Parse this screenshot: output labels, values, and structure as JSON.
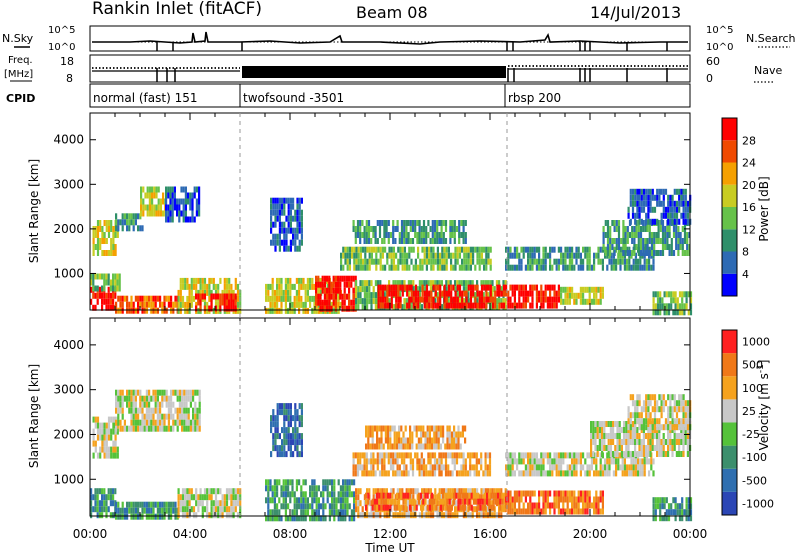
{
  "header": {
    "station": "Rankin Inlet (fitACF)",
    "beam": "Beam 08",
    "date": "14/Jul/2013"
  },
  "left_labels": {
    "nsky": "N.Sky",
    "freq_line1": "Freq.",
    "freq_line2": "[MHz]",
    "cpid": "CPID"
  },
  "right_labels": {
    "nsearch": "N.Search",
    "nave": "Nave"
  },
  "nsky_axis": {
    "top": "10^5",
    "bottom": "10^0"
  },
  "freq_axis": {
    "top": "18",
    "bottom": "8"
  },
  "nave_axis": {
    "top": "60",
    "bottom": "0"
  },
  "cpid_modes": [
    {
      "label": "normal (fast) 151",
      "start_h": 0.0,
      "end_h": 6.0
    },
    {
      "label": "twofsound -3501",
      "start_h": 6.0,
      "end_h": 16.6
    },
    {
      "label": "rbsp 200",
      "start_h": 16.6,
      "end_h": 24.0
    }
  ],
  "x_axis": {
    "label": "Time UT",
    "ticks": [
      "00:00",
      "04:00",
      "08:00",
      "12:00",
      "16:00",
      "20:00",
      "00:00"
    ]
  },
  "panels": {
    "power": {
      "ylabel": "Slant Range [km]",
      "yticks": [
        "1000",
        "2000",
        "3000",
        "4000"
      ],
      "cbar_label": "Power [dB]",
      "cbar_ticks": [
        "28",
        "24",
        "20",
        "16",
        "12",
        "8",
        "4"
      ],
      "colors": [
        "#0000ff",
        "#2d6ab4",
        "#2f8f6a",
        "#66c24a",
        "#c8cc22",
        "#f5a000",
        "#f04a00",
        "#ff0000"
      ]
    },
    "velocity": {
      "ylabel": "Slant Range [km]",
      "yticks": [
        "1000",
        "2000",
        "3000",
        "4000"
      ],
      "cbar_label": "Velocity [m s",
      "cbar_label_sup": "-1",
      "cbar_label_end": "]",
      "cbar_ticks": [
        "1000",
        "500",
        "100",
        "25",
        "-25",
        "-100",
        "-500",
        "-1000"
      ],
      "colors": [
        "#2b46b5",
        "#2f6fb0",
        "#3c8f6d",
        "#55c23a",
        "#c8c8c8",
        "#f5a21e",
        "#f07818",
        "#ff2020"
      ]
    }
  },
  "chart_data": [
    {
      "type": "heatmap",
      "title": "Power",
      "xlabel": "Time UT",
      "ylabel": "Slant Range [km]",
      "xlim_hours": [
        0,
        24
      ],
      "ylim_km": [
        180,
        4600
      ],
      "colorbar_ticks_dB": [
        4,
        8,
        12,
        16,
        20,
        24,
        28
      ],
      "colorbar_label": "Power [dB]",
      "regions": [
        {
          "t0": 0.0,
          "t1": 1.0,
          "r0": 180,
          "r1": 700,
          "level": 7
        },
        {
          "t0": 0.0,
          "t1": 1.2,
          "r0": 700,
          "r1": 1000,
          "level": 3
        },
        {
          "t0": 0.1,
          "t1": 1.1,
          "r0": 1500,
          "r1": 2200,
          "level": 4
        },
        {
          "t0": 1.0,
          "t1": 2.1,
          "r0": 2000,
          "r1": 2350,
          "level": 2
        },
        {
          "t0": 2.0,
          "t1": 3.0,
          "r0": 2300,
          "r1": 2950,
          "level": 4
        },
        {
          "t0": 3.0,
          "t1": 4.4,
          "r0": 2250,
          "r1": 2950,
          "level": 1
        },
        {
          "t0": 1.0,
          "t1": 3.5,
          "r0": 180,
          "r1": 500,
          "level": 6
        },
        {
          "t0": 3.5,
          "t1": 6.0,
          "r0": 180,
          "r1": 900,
          "level": 4
        },
        {
          "t0": 4.2,
          "t1": 5.8,
          "r0": 250,
          "r1": 550,
          "level": 7
        },
        {
          "t0": 7.2,
          "t1": 8.5,
          "r0": 1500,
          "r1": 2700,
          "level": 1
        },
        {
          "t0": 7.0,
          "t1": 10.0,
          "r0": 180,
          "r1": 900,
          "level": 4
        },
        {
          "t0": 9.0,
          "t1": 10.6,
          "r0": 180,
          "r1": 950,
          "level": 7
        },
        {
          "t0": 10.6,
          "t1": 16.6,
          "r0": 200,
          "r1": 850,
          "level": 3
        },
        {
          "t0": 11.5,
          "t1": 16.6,
          "r0": 300,
          "r1": 750,
          "level": 7
        },
        {
          "t0": 10.0,
          "t1": 16.0,
          "r0": 1100,
          "r1": 1600,
          "level": 3
        },
        {
          "t0": 10.5,
          "t1": 15.0,
          "r0": 1700,
          "r1": 2200,
          "level": 2
        },
        {
          "t0": 16.6,
          "t1": 18.8,
          "r0": 300,
          "r1": 750,
          "level": 7
        },
        {
          "t0": 18.8,
          "t1": 20.5,
          "r0": 300,
          "r1": 700,
          "level": 4
        },
        {
          "t0": 16.6,
          "t1": 22.5,
          "r0": 1100,
          "r1": 1600,
          "level": 2
        },
        {
          "t0": 20.5,
          "t1": 24.0,
          "r0": 1500,
          "r1": 2200,
          "level": 2
        },
        {
          "t0": 21.5,
          "t1": 24.0,
          "r0": 2200,
          "r1": 2900,
          "level": 1
        },
        {
          "t0": 22.5,
          "t1": 24.0,
          "r0": 180,
          "r1": 600,
          "level": 3
        }
      ]
    },
    {
      "type": "heatmap",
      "title": "Velocity",
      "xlabel": "Time UT",
      "ylabel": "Slant Range [km]",
      "xlim_hours": [
        0,
        24
      ],
      "ylim_km": [
        180,
        4600
      ],
      "colorbar_ticks_ms": [
        -1000,
        -500,
        -100,
        -25,
        25,
        100,
        500,
        1000
      ],
      "colorbar_label": "Velocity [m s-1]",
      "regions": [
        {
          "t0": 0.0,
          "t1": 1.0,
          "r0": 180,
          "r1": 800,
          "level": 2
        },
        {
          "t0": 0.1,
          "t1": 1.1,
          "r0": 1500,
          "r1": 2400,
          "level": 4
        },
        {
          "t0": 1.0,
          "t1": 4.4,
          "r0": 2100,
          "r1": 3000,
          "level": 4
        },
        {
          "t0": 1.0,
          "t1": 3.5,
          "r0": 180,
          "r1": 500,
          "level": 2
        },
        {
          "t0": 3.5,
          "t1": 6.0,
          "r0": 180,
          "r1": 800,
          "level": 4
        },
        {
          "t0": 7.0,
          "t1": 10.6,
          "r0": 180,
          "r1": 1000,
          "level": 2
        },
        {
          "t0": 7.2,
          "t1": 8.5,
          "r0": 1500,
          "r1": 2700,
          "level": 1
        },
        {
          "t0": 10.6,
          "t1": 16.6,
          "r0": 250,
          "r1": 800,
          "level": 5
        },
        {
          "t0": 11.0,
          "t1": 16.6,
          "r0": 350,
          "r1": 700,
          "level": 6
        },
        {
          "t0": 10.5,
          "t1": 16.0,
          "r0": 1100,
          "r1": 1600,
          "level": 5
        },
        {
          "t0": 11.0,
          "t1": 15.0,
          "r0": 1700,
          "r1": 2200,
          "level": 5
        },
        {
          "t0": 16.6,
          "t1": 20.5,
          "r0": 300,
          "r1": 750,
          "level": 6
        },
        {
          "t0": 16.6,
          "t1": 22.5,
          "r0": 1100,
          "r1": 1600,
          "level": 4
        },
        {
          "t0": 20.0,
          "t1": 24.0,
          "r0": 1500,
          "r1": 2300,
          "level": 4
        },
        {
          "t0": 21.5,
          "t1": 24.0,
          "r0": 2200,
          "r1": 2900,
          "level": 4
        },
        {
          "t0": 22.5,
          "t1": 24.0,
          "r0": 180,
          "r1": 600,
          "level": 2
        }
      ]
    }
  ]
}
